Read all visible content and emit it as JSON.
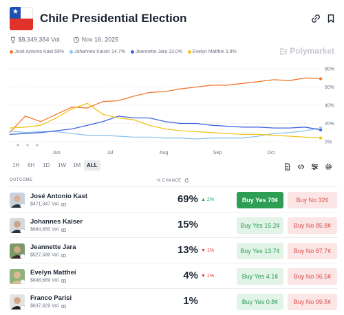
{
  "market": {
    "title": "Chile Presidential Election",
    "volume": "$8,349,384 Vol.",
    "date": "Nov 16, 2025",
    "brand": "Polymarket"
  },
  "legend": [
    {
      "label": "José Antonio Kast 69%",
      "color": "#f2772c"
    },
    {
      "label": "Johannes Kaiser 14.7%",
      "color": "#8fc3e8"
    },
    {
      "label": "Jeannette Jara 13.0%",
      "color": "#3e63dd"
    },
    {
      "label": "Evelyn Matthei 3.8%",
      "color": "#f2c21b"
    }
  ],
  "chart_data": {
    "type": "line",
    "x_ticks": [
      "Jun",
      "Jul",
      "Aug",
      "Sep",
      "Oct"
    ],
    "y_ticks": [
      "0%",
      "20%",
      "40%",
      "60%",
      "80%"
    ],
    "ylim": [
      0,
      80
    ],
    "x": [
      0,
      2,
      4,
      6,
      8,
      10,
      12,
      14,
      16,
      18,
      20,
      22,
      24,
      26,
      28,
      30,
      32,
      34,
      36,
      38,
      40
    ],
    "series": [
      {
        "name": "José Antonio Kast",
        "color": "#f2772c",
        "values": [
          10,
          28,
          22,
          30,
          38,
          37,
          44,
          45,
          50,
          54,
          55,
          58,
          60,
          62,
          62,
          64,
          66,
          68,
          67,
          70,
          69
        ]
      },
      {
        "name": "Johannes Kaiser",
        "color": "#8fc3e8",
        "values": [
          12,
          10,
          11,
          11,
          9,
          7,
          7,
          6,
          5,
          5,
          4,
          4,
          3,
          4,
          4,
          4,
          6,
          9,
          10,
          12,
          15
        ]
      },
      {
        "name": "Jeannette Jara",
        "color": "#3e63dd",
        "values": [
          8,
          9,
          10,
          12,
          14,
          18,
          22,
          28,
          26,
          26,
          22,
          20,
          20,
          18,
          17,
          16,
          16,
          15,
          15,
          16,
          13
        ]
      },
      {
        "name": "Evelyn Matthei",
        "color": "#f2c21b",
        "values": [
          15,
          16,
          18,
          26,
          36,
          42,
          30,
          26,
          24,
          18,
          14,
          12,
          11,
          10,
          9,
          8,
          8,
          7,
          6,
          5,
          4
        ]
      }
    ]
  },
  "ranges": [
    {
      "label": "1H",
      "active": false
    },
    {
      "label": "6H",
      "active": false
    },
    {
      "label": "1D",
      "active": false
    },
    {
      "label": "1W",
      "active": false
    },
    {
      "label": "1M",
      "active": false
    },
    {
      "label": "ALL",
      "active": true
    }
  ],
  "table": {
    "outcome_header": "OUTCOME",
    "chance_header": "% CHANCE",
    "rows": [
      {
        "name": "José Antonio Kast",
        "volume": "$471,347 Vol.",
        "chance": "69%",
        "change": "▲ 2%",
        "direction": "up",
        "buy_yes": "Buy Yes 70¢",
        "buy_no": "Buy No 32¢",
        "primary": true,
        "avatar_colors": [
          "#c9d3dd",
          "#d8b49a",
          "#2b3440"
        ]
      },
      {
        "name": "Johannes Kaiser",
        "volume": "$684,650 Vol.",
        "chance": "15%",
        "change": "",
        "direction": "none",
        "buy_yes": "Buy Yes 15.2¢",
        "buy_no": "Buy No 85.8¢",
        "primary": false,
        "avatar_colors": [
          "#d9d9d9",
          "#c9a68c",
          "#27303a"
        ]
      },
      {
        "name": "Jeannette Jara",
        "volume": "$527,580 Vol.",
        "chance": "13%",
        "change": "▼ 1%",
        "direction": "down",
        "buy_yes": "Buy Yes 13.7¢",
        "buy_no": "Buy No 87.7¢",
        "primary": false,
        "avatar_colors": [
          "#7a9a6a",
          "#d3a787",
          "#3d2a22"
        ]
      },
      {
        "name": "Evelyn Matthei",
        "volume": "$848,689 Vol.",
        "chance": "4%",
        "change": "▼ 1%",
        "direction": "down",
        "buy_yes": "Buy Yes 4.1¢",
        "buy_no": "Buy No 96.5¢",
        "primary": false,
        "avatar_colors": [
          "#8fb37a",
          "#e0b998",
          "#d8c089"
        ]
      },
      {
        "name": "Franco Parisi",
        "volume": "$637,629 Vol.",
        "chance": "1%",
        "change": "",
        "direction": "none",
        "buy_yes": "Buy Yes 0.8¢",
        "buy_no": "Buy No 99.5¢",
        "primary": false,
        "avatar_colors": [
          "#e4e4e4",
          "#cfa88a",
          "#1f1f1f"
        ]
      }
    ]
  }
}
